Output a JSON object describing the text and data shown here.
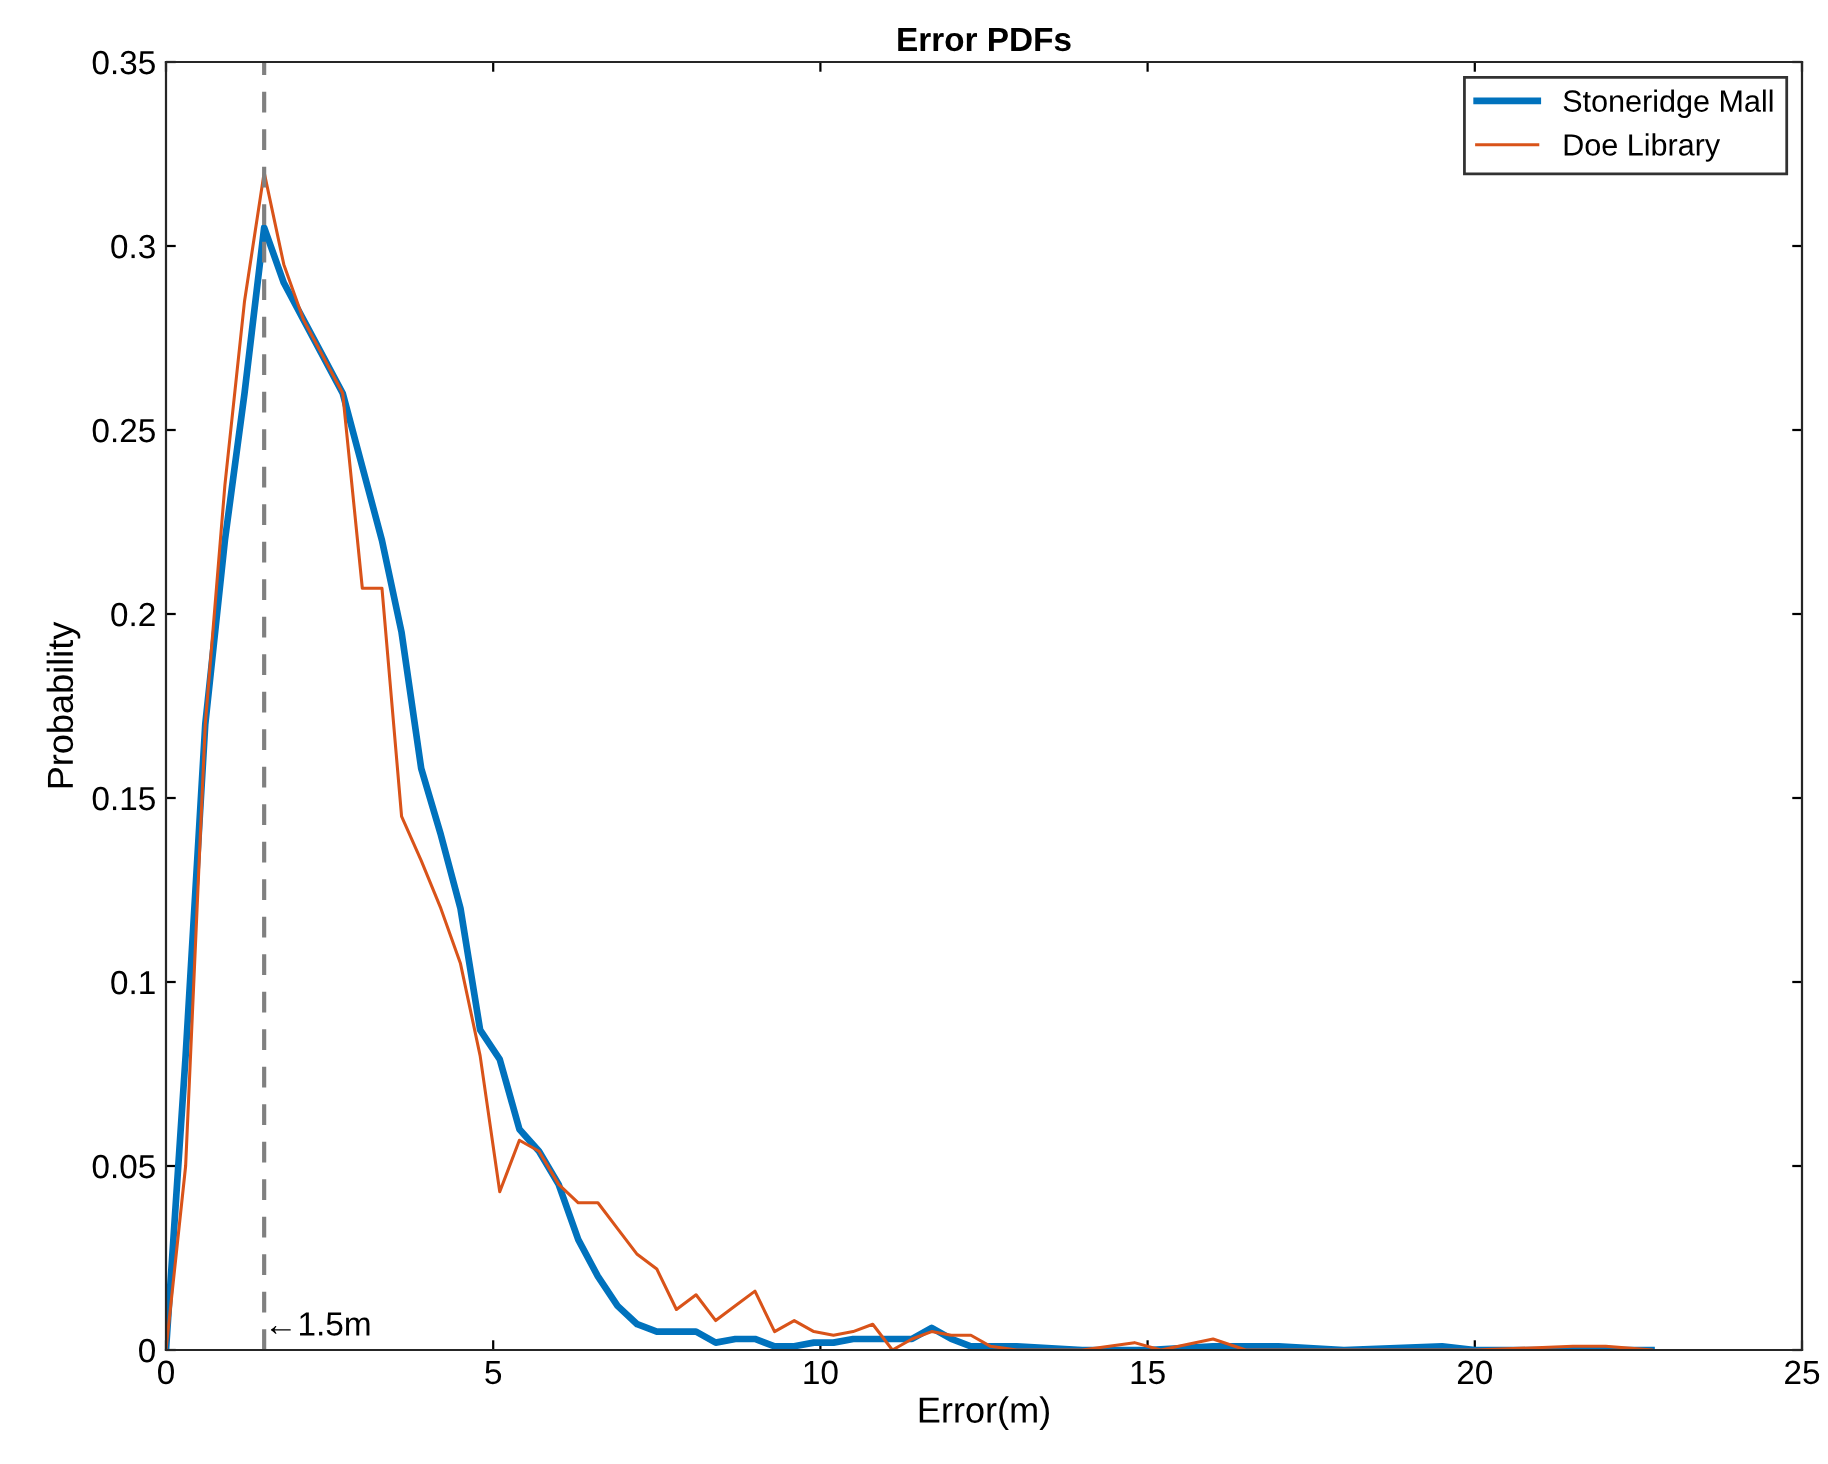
{
  "chart_data": {
    "type": "line",
    "title": "Error PDFs",
    "xlabel": "Error(m)",
    "ylabel": "Probability",
    "xlim": [
      0,
      25
    ],
    "xticks": [
      0,
      5,
      10,
      15,
      20,
      25
    ],
    "ylim": [
      0,
      0.35
    ],
    "yticks": [
      0,
      0.05,
      0.1,
      0.15,
      0.2,
      0.25,
      0.3,
      0.35
    ],
    "grid": false,
    "legend": "top right",
    "line_style": "solid",
    "marker": "none",
    "series": [
      {
        "name": "Stoneridge Mall",
        "color": "#0072bd",
        "x": [
          0,
          0.3,
          0.6,
          0.9,
          1.2,
          1.5,
          1.8,
          2.1,
          2.4,
          2.7,
          3.0,
          3.3,
          3.6,
          3.9,
          4.2,
          4.5,
          4.8,
          5.1,
          5.4,
          5.7,
          6.0,
          6.3,
          6.6,
          6.9,
          7.2,
          7.5,
          7.8,
          8.1,
          8.4,
          8.7,
          9.0,
          9.3,
          9.6,
          9.9,
          10.2,
          10.5,
          10.8,
          11.1,
          11.4,
          11.7,
          12.0,
          12.3,
          12.6,
          13,
          14,
          15,
          16,
          17,
          18,
          19.5,
          20,
          21,
          22,
          22.7
        ],
        "values": [
          0,
          0.08,
          0.17,
          0.22,
          0.26,
          0.305,
          0.29,
          0.28,
          0.27,
          0.26,
          0.24,
          0.22,
          0.195,
          0.158,
          0.14,
          0.12,
          0.087,
          0.079,
          0.06,
          0.054,
          0.045,
          0.03,
          0.02,
          0.012,
          0.007,
          0.005,
          0.005,
          0.005,
          0.002,
          0.003,
          0.003,
          0.001,
          0.001,
          0.002,
          0.002,
          0.003,
          0.003,
          0.003,
          0.003,
          0.006,
          0.003,
          0.001,
          0.001,
          0.001,
          0,
          0,
          0.001,
          0.001,
          0,
          0.001,
          0,
          0,
          0,
          0
        ]
      },
      {
        "name": "Doe Library",
        "color": "#d95319",
        "x": [
          0,
          0.3,
          0.6,
          0.9,
          1.2,
          1.5,
          1.8,
          2.1,
          2.4,
          2.7,
          3.0,
          3.3,
          3.6,
          3.9,
          4.2,
          4.5,
          4.8,
          5.1,
          5.4,
          5.7,
          6.0,
          6.3,
          6.6,
          6.9,
          7.2,
          7.5,
          7.8,
          8.1,
          8.4,
          8.7,
          9.0,
          9.3,
          9.6,
          9.9,
          10.2,
          10.5,
          10.8,
          11.1,
          11.4,
          11.7,
          12.0,
          12.3,
          12.6,
          13,
          14,
          14.8,
          15.2,
          16.0,
          16.5,
          18,
          20,
          21.5,
          22,
          22.7
        ],
        "values": [
          0,
          0.05,
          0.17,
          0.235,
          0.285,
          0.32,
          0.295,
          0.28,
          0.27,
          0.26,
          0.207,
          0.207,
          0.145,
          0.133,
          0.12,
          0.105,
          0.08,
          0.043,
          0.057,
          0.054,
          0.045,
          0.04,
          0.04,
          0.033,
          0.026,
          0.022,
          0.011,
          0.015,
          0.008,
          0.012,
          0.016,
          0.005,
          0.008,
          0.005,
          0.004,
          0.005,
          0.007,
          0,
          0.003,
          0.005,
          0.004,
          0.004,
          0.001,
          0,
          0,
          0.002,
          0,
          0.003,
          0,
          0,
          0,
          0.001,
          0.001,
          0
        ]
      }
    ],
    "ref_lines": [
      {
        "axis": "x",
        "value": 1.5,
        "label": "←1.5m",
        "color": "#808080",
        "line_style": "dashed"
      }
    ]
  }
}
